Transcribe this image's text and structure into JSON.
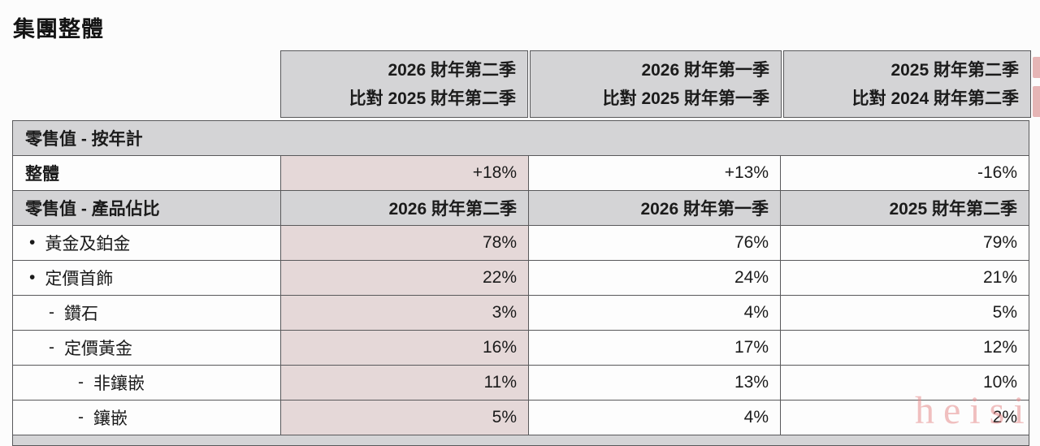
{
  "page": {
    "title": "集團整體"
  },
  "watermark": {
    "text": "heisi"
  },
  "colors": {
    "section_header_bg": "#d4d4d6",
    "highlight_column_bg": "#e5d8d8",
    "border": "#59595b",
    "text": "#1b1b1b",
    "watermark_pink": "#e68c8c"
  },
  "table": {
    "period_headers": [
      {
        "line1": "2026 財年第二季",
        "line2": "比對 2025 財年第二季"
      },
      {
        "line1": "2026 財年第一季",
        "line2": "比對 2025 財年第一季"
      },
      {
        "line1": "2025 財年第二季",
        "line2": "比對 2024 財年第二季"
      }
    ],
    "yoy_section": {
      "title": "零售值 - 按年計",
      "rows": [
        {
          "label": "整體",
          "values": [
            "+18%",
            "+13%",
            "-16%"
          ]
        }
      ]
    },
    "mix_section": {
      "title": "零售值 - 產品佔比",
      "col_headers": [
        "2026 財年第二季",
        "2026 財年第一季",
        "2025 財年第二季"
      ],
      "rows": [
        {
          "bullet": "•",
          "label": "黃金及鉑金",
          "values": [
            "78%",
            "76%",
            "79%"
          ]
        },
        {
          "bullet": "•",
          "label": "定價首飾",
          "values": [
            "22%",
            "24%",
            "21%"
          ]
        },
        {
          "bullet": "-",
          "label": "鑽石",
          "values": [
            "3%",
            "4%",
            "5%"
          ]
        },
        {
          "bullet": "-",
          "label": "定價黃金",
          "values": [
            "16%",
            "17%",
            "12%"
          ]
        },
        {
          "bullet": "-",
          "label": "非鑲嵌",
          "values": [
            "11%",
            "13%",
            "10%"
          ]
        },
        {
          "bullet": "-",
          "label": "鑲嵌",
          "values": [
            "5%",
            "4%",
            "2%"
          ]
        }
      ]
    }
  }
}
